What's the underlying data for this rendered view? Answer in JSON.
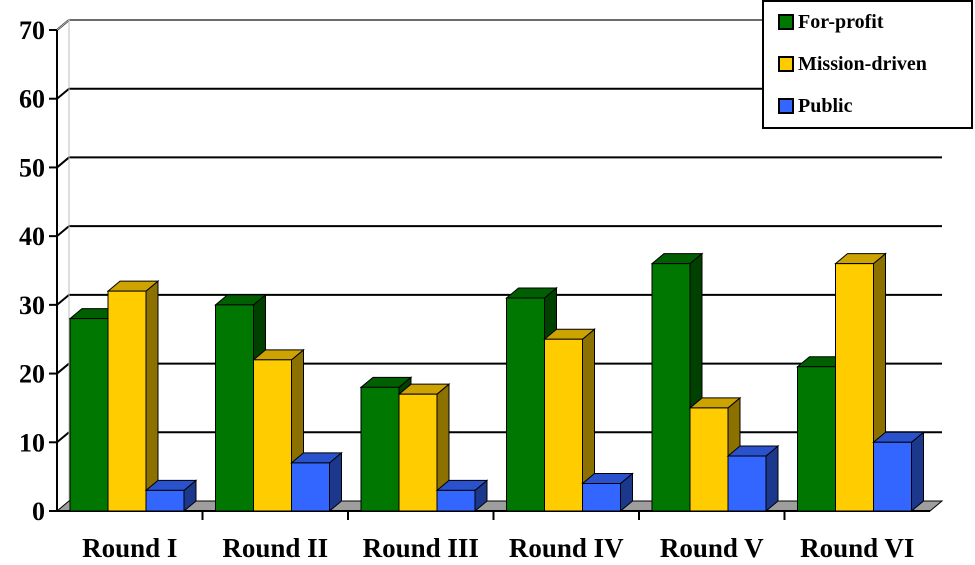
{
  "chart_data": {
    "type": "bar",
    "title": "",
    "xlabel": "",
    "ylabel": "",
    "ylim": [
      0,
      70
    ],
    "yticks": [
      0,
      10,
      20,
      30,
      40,
      50,
      60,
      70
    ],
    "categories": [
      "Round I",
      "Round II",
      "Round III",
      "Round IV",
      "Round V",
      "Round VI"
    ],
    "series": [
      {
        "name": "For-profit",
        "color": "#007700",
        "values": [
          28,
          30,
          18,
          31,
          36,
          21
        ]
      },
      {
        "name": "Mission-driven",
        "color": "#FFCC00",
        "values": [
          32,
          22,
          17,
          25,
          15,
          36
        ]
      },
      {
        "name": "Public",
        "color": "#3366FF",
        "values": [
          3,
          7,
          3,
          4,
          8,
          10
        ]
      }
    ],
    "grid": true,
    "style": "3d",
    "legend_position": "top-right"
  }
}
